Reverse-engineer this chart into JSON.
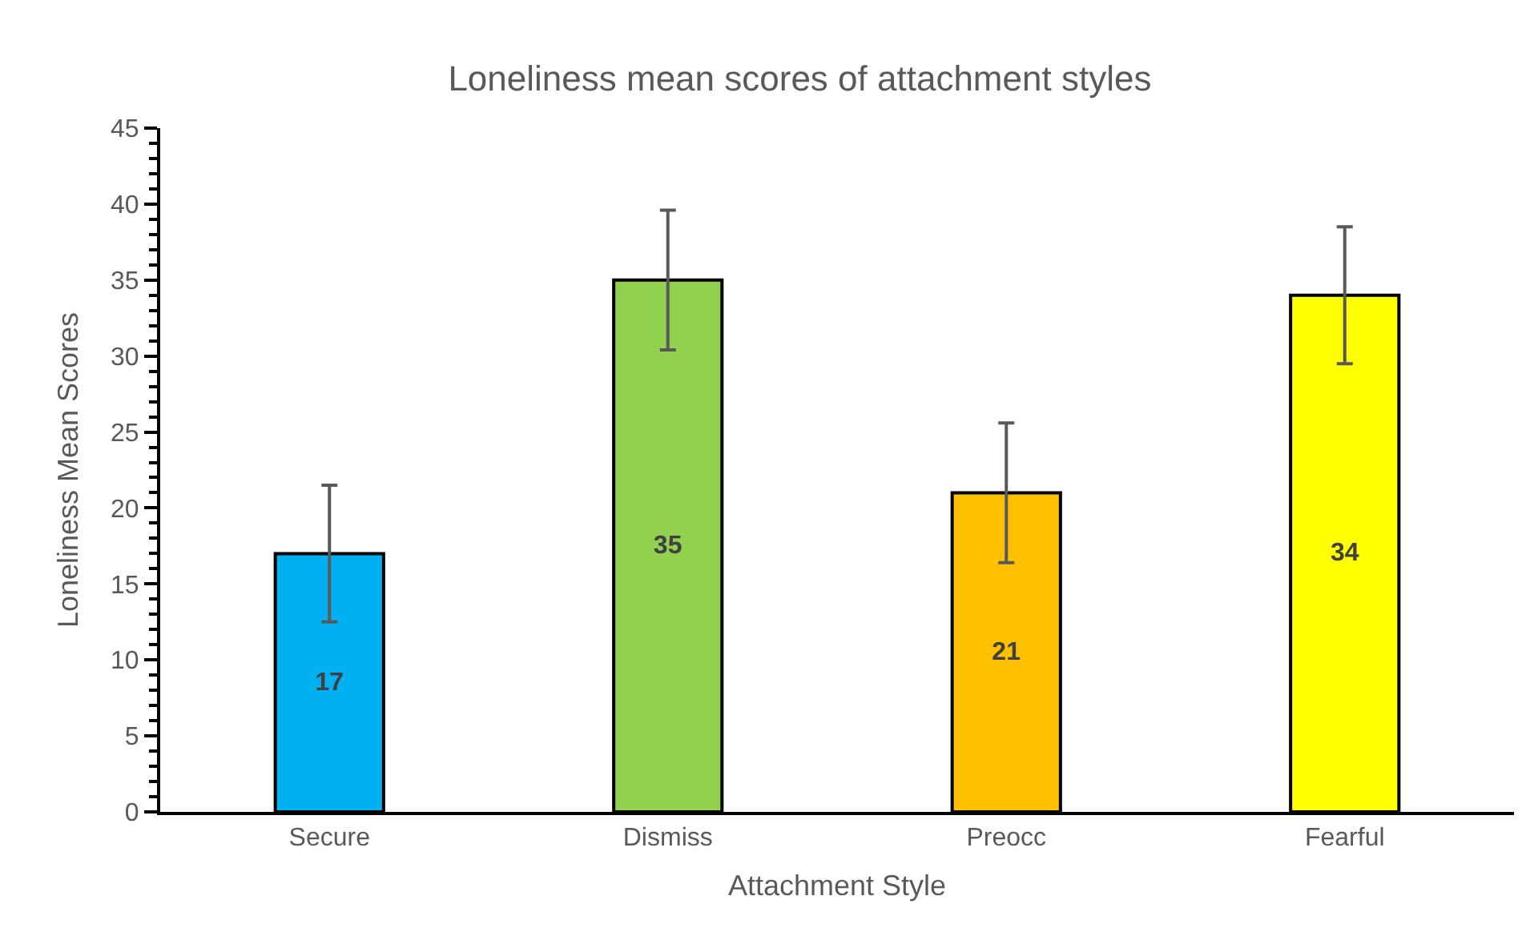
{
  "chart_data": {
    "type": "bar",
    "title": "Loneliness mean scores of attachment styles",
    "xlabel": "Attachment Style",
    "ylabel": "Loneliness Mean Scores",
    "categories": [
      "Secure",
      "Dismiss",
      "Preocc",
      "Fearful"
    ],
    "values": [
      17,
      35,
      21,
      34
    ],
    "colors": [
      "#00b0f0",
      "#92d050",
      "#ffc000",
      "#ffff00"
    ],
    "errors": [
      4.5,
      4.6,
      4.6,
      4.5
    ],
    "data_labels": true,
    "ylim": [
      0,
      45
    ],
    "yticks": [
      0,
      {
        "value": 1,
        "label": null
      },
      {
        "value": 2,
        "label": null
      },
      {
        "value": 3,
        "label": null
      },
      {
        "value": 4,
        "label": null
      },
      5,
      {
        "value": 6,
        "label": null
      },
      {
        "value": 7,
        "label": null
      },
      {
        "value": 8,
        "label": null
      },
      {
        "value": 9,
        "label": null
      },
      10,
      {
        "value": 11,
        "label": null
      },
      {
        "value": 12,
        "label": null
      },
      {
        "value": 13,
        "label": null
      },
      {
        "value": 14,
        "label": null
      },
      15,
      {
        "value": 16,
        "label": null
      },
      {
        "value": 17,
        "label": null
      },
      {
        "value": 18,
        "label": null
      },
      {
        "value": 19,
        "label": null
      },
      20,
      {
        "value": 21,
        "label": null
      },
      {
        "value": 22,
        "label": null
      },
      {
        "value": 23,
        "label": null
      },
      {
        "value": 24,
        "label": null
      },
      25,
      {
        "value": 26,
        "label": null
      },
      {
        "value": 27,
        "label": null
      },
      {
        "value": 28,
        "label": null
      },
      {
        "value": 29,
        "label": null
      },
      30,
      {
        "value": 31,
        "label": null
      },
      {
        "value": 32,
        "label": null
      },
      {
        "value": 33,
        "label": null
      },
      {
        "value": 34,
        "label": null
      },
      35,
      {
        "value": 36,
        "label": null
      },
      {
        "value": 37,
        "label": null
      },
      {
        "value": 38,
        "label": null
      },
      {
        "value": 39,
        "label": null
      },
      40,
      {
        "value": 41,
        "label": null
      },
      {
        "value": 42,
        "label": null
      },
      {
        "value": 43,
        "label": null
      },
      {
        "value": 44,
        "label": null
      },
      45
    ]
  }
}
